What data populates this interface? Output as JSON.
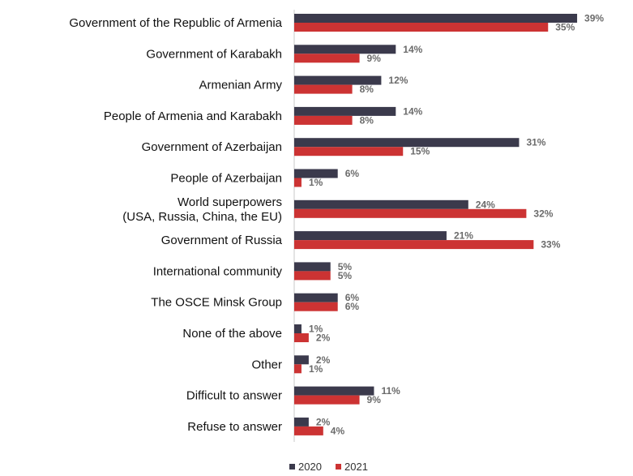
{
  "chart_data": {
    "type": "bar",
    "orientation": "horizontal",
    "categories": [
      [
        "Government of the Republic of Armenia"
      ],
      [
        "Government of Karabakh"
      ],
      [
        "Armenian Army"
      ],
      [
        "People of Armenia and Karabakh"
      ],
      [
        "Government of Azerbaijan"
      ],
      [
        "People of Azerbaijan"
      ],
      [
        "World superpowers",
        "(USA, Russia, China, the EU)"
      ],
      [
        "Government of Russia"
      ],
      [
        "International community"
      ],
      [
        "The OSCE Minsk Group"
      ],
      [
        "None of the above"
      ],
      [
        "Other"
      ],
      [
        "Difficult to answer"
      ],
      [
        "Refuse to answer"
      ]
    ],
    "series": [
      {
        "name": "2020",
        "color": "#3b3a4c",
        "values": [
          39,
          14,
          12,
          14,
          31,
          6,
          24,
          21,
          5,
          6,
          1,
          2,
          11,
          2
        ]
      },
      {
        "name": "2021",
        "color": "#cc3333",
        "values": [
          35,
          9,
          8,
          8,
          15,
          1,
          32,
          33,
          5,
          6,
          2,
          1,
          9,
          4
        ]
      }
    ],
    "value_suffix": "%",
    "xlim": [
      0,
      44
    ],
    "grid": false,
    "legend_position": "bottom"
  }
}
